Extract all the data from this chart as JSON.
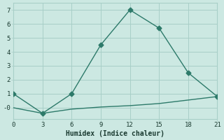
{
  "xlabel": "Humidex (Indice chaleur)",
  "line1_x": [
    0,
    3,
    6,
    9,
    12,
    15,
    18,
    21
  ],
  "line1_y": [
    1.0,
    -0.4,
    1.0,
    4.5,
    7.0,
    5.7,
    2.5,
    0.8
  ],
  "line2_x": [
    0,
    3,
    6,
    9,
    12,
    15,
    18,
    21
  ],
  "line2_y": [
    0.0,
    -0.4,
    -0.1,
    0.05,
    0.15,
    0.3,
    0.55,
    0.8
  ],
  "line_color": "#2d7a6a",
  "bg_color": "#cce8e2",
  "grid_major_color": "#a8cfc8",
  "grid_minor_color": "#e8b8b8",
  "xlim": [
    0,
    21
  ],
  "ylim": [
    -0.8,
    7.5
  ],
  "xticks": [
    0,
    3,
    6,
    9,
    12,
    15,
    18,
    21
  ],
  "yticks": [
    0,
    1,
    2,
    3,
    4,
    5,
    6,
    7
  ],
  "ytick_labels": [
    "-0",
    "1",
    "2",
    "3",
    "4",
    "5",
    "6",
    "7"
  ],
  "marker": "D",
  "marker_size": 3.5,
  "linewidth": 1.0
}
